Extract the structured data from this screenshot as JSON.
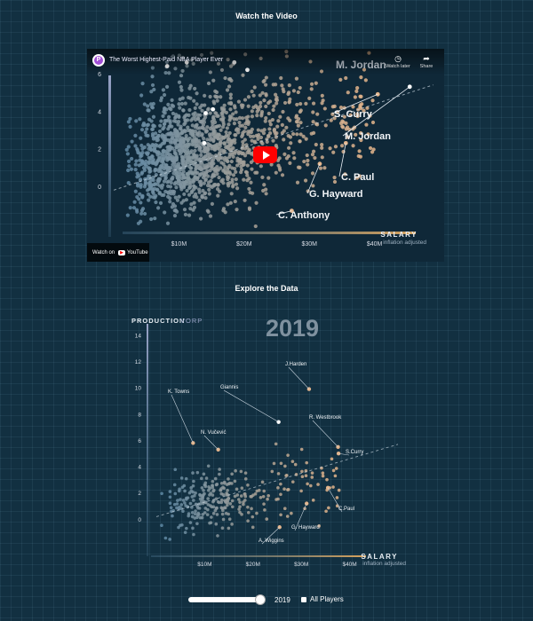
{
  "sections": {
    "video_title": "Watch the Video",
    "explore_title": "Explore the Data"
  },
  "video": {
    "title": "The Worst Highest-Paid NBA Player Ever",
    "watch_later": "Watch later",
    "share": "Share",
    "watch_on": "Watch on",
    "youtube": "YouTube",
    "icons": [
      "clock-icon",
      "share-icon",
      "play-icon"
    ]
  },
  "controls": {
    "year": "2019",
    "slider_value": 1.0,
    "all_players_label": "All Players",
    "all_players_checked": true
  },
  "colors": {
    "background": "#123041",
    "axis_x": "#d9a35c",
    "axis_y": "#9aa4c8",
    "dot_low": "#5a87a6",
    "dot_high": "#e4b58c",
    "youtube_red": "#ff0000"
  },
  "chart_data": [
    {
      "id": "video-chart",
      "type": "scatter",
      "xlabel": "SALARY",
      "xlabel_sub": "inflation adjusted",
      "xticks": [
        10,
        20,
        30,
        40
      ],
      "xtick_labels": [
        "$10M",
        "$20M",
        "$30M",
        "$40M"
      ],
      "yticks": [
        0,
        2,
        4,
        6
      ],
      "yticks_labels": [
        "0",
        "2",
        "4",
        "6"
      ],
      "xlim": [
        0,
        50
      ],
      "ylim": [
        -2.5,
        7.7
      ],
      "big_label": "M. Jordan",
      "labeled_points": [
        {
          "name": "M. Jordan",
          "x": 45.4,
          "y": 5.3
        },
        {
          "name": "S. Curry",
          "x": 40.5,
          "y": 4.9
        },
        {
          "name": "C. Paul",
          "x": 35.6,
          "y": 2.3
        },
        {
          "name": "G. Hayward",
          "x": 31.6,
          "y": 1.2
        },
        {
          "name": "C. Anthony",
          "x": 27.3,
          "y": -1.3
        }
      ],
      "highlighted_points": [
        {
          "x": 8.2,
          "y": 6.4
        },
        {
          "x": 11.2,
          "y": 6.6
        },
        {
          "x": 18.5,
          "y": 6.6
        },
        {
          "x": 20.5,
          "y": 6.2
        },
        {
          "x": 15.2,
          "y": 4.1
        },
        {
          "x": 13.9,
          "y": 2.3
        },
        {
          "x": 14.1,
          "y": 3.9
        },
        {
          "x": 35.6,
          "y": 7.5
        }
      ],
      "trend": {
        "x": [
          0,
          49
        ],
        "y": [
          -0.2,
          5.4
        ]
      }
    },
    {
      "id": "explore-chart",
      "type": "scatter",
      "title": "2019",
      "ylabel": "PRODUCTION",
      "ylabel_sub": "VORP",
      "xlabel": "SALARY",
      "xlabel_sub": "inflation adjusted",
      "xticks": [
        10,
        20,
        30,
        40
      ],
      "xtick_labels": [
        "$10M",
        "$20M",
        "$30M",
        "$40M"
      ],
      "yticks": [
        0,
        2,
        4,
        6,
        8,
        10,
        12,
        14
      ],
      "ytick_labels": [
        "0",
        "2",
        "4",
        "6",
        "8",
        "10",
        "12",
        "14"
      ],
      "xlim": [
        0,
        50
      ],
      "ylim": [
        -2,
        15
      ],
      "labeled_points": [
        {
          "name": "J.Harden",
          "x": 31.6,
          "y": 9.9
        },
        {
          "name": "Giannis",
          "x": 25.3,
          "y": 7.4
        },
        {
          "name": "K. Towns",
          "x": 7.6,
          "y": 5.8
        },
        {
          "name": "N. Vučević",
          "x": 12.8,
          "y": 5.3
        },
        {
          "name": "R. Westbrook",
          "x": 37.6,
          "y": 5.5
        },
        {
          "name": "S.Curry",
          "x": 37.7,
          "y": 5.0
        },
        {
          "name": "C.Paul",
          "x": 35.5,
          "y": 2.4
        },
        {
          "name": "G. Hayward",
          "x": 31.1,
          "y": 1.2
        },
        {
          "name": "A. Wiggins",
          "x": 25.5,
          "y": -0.6
        }
      ],
      "trend": {
        "x": [
          0,
          50
        ],
        "y": [
          0.2,
          5.7
        ]
      }
    }
  ]
}
